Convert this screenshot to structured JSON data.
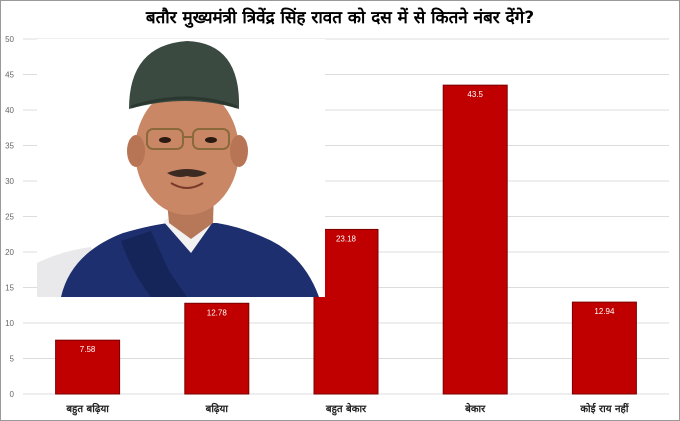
{
  "chart_data": {
    "type": "bar",
    "title": "बतौर मुख्यमंत्री त्रिवेंद्र सिंह रावत को दस में से कितने नंबर देंगे?",
    "categories": [
      "बहुत बढ़िया",
      "बढ़िया",
      "बहुत बेकार",
      "बेकार",
      "कोई राय नहीं"
    ],
    "values": [
      7.58,
      12.78,
      23.18,
      43.5,
      12.94
    ],
    "data_labels": [
      "7.58",
      "12.78",
      "23.18",
      "43.5",
      "12.94"
    ],
    "y_ticks": [
      "0",
      "5",
      "10",
      "15",
      "20",
      "25",
      "30",
      "35",
      "40",
      "45",
      "50"
    ],
    "ylim": [
      0,
      50
    ],
    "xlabel": "",
    "ylabel": "",
    "grid": true,
    "bar_color": "#c00000",
    "bar_edge_color": "#7a0000"
  },
  "photo": {
    "icon": "politician-portrait-photo"
  }
}
